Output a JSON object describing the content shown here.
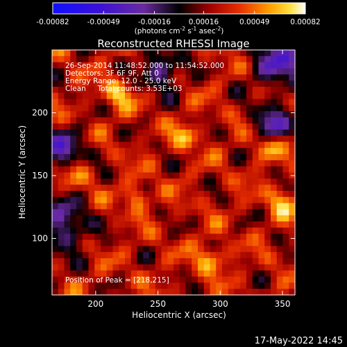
{
  "chart_data": {
    "type": "heatmap",
    "title": "Reconstructed RHESSI Image",
    "xlabel": "Heliocentric X (arcsec)",
    "ylabel": "Heliocentric Y (arcsec)",
    "xlim": [
      165,
      360
    ],
    "ylim": [
      55,
      250
    ],
    "x_ticks": [
      200,
      250,
      300,
      350
    ],
    "y_ticks": [
      100,
      150,
      200
    ],
    "colorbar": {
      "range": [
        -0.00082,
        0.00082
      ],
      "tick_values": [
        -0.00082,
        -0.00049,
        -0.00016,
        0.00016,
        0.00049,
        0.00082
      ],
      "tick_labels": [
        "-0.00082",
        "-0.00049",
        "-0.00016",
        "0.00016",
        "0.00049",
        "0.00082"
      ],
      "units_main": "(photons cm",
      "units_exp1": "-2",
      "units_mid1": " s",
      "units_exp2": "-1",
      "units_mid2": " asec",
      "units_exp3": "-2",
      "units_end": ")"
    },
    "annotations": [
      "26-Sep-2014 11:48:52.000 to 11:54:52.000",
      "Detectors: 3F 6F 9F, Att 0",
      "Energy Range: 12.0 - 25.0 keV",
      "Clean     Total counts: 3.53E+03"
    ],
    "peak_label": "Position of Peak = [218,215]",
    "peak": [
      218,
      215
    ],
    "grid_visible": false,
    "colormap": "RHESSI color table: blue-purple (negative) through black, red, orange, yellow to white (positive)"
  },
  "footer": {
    "timestamp": "17-May-2022 14:45"
  }
}
